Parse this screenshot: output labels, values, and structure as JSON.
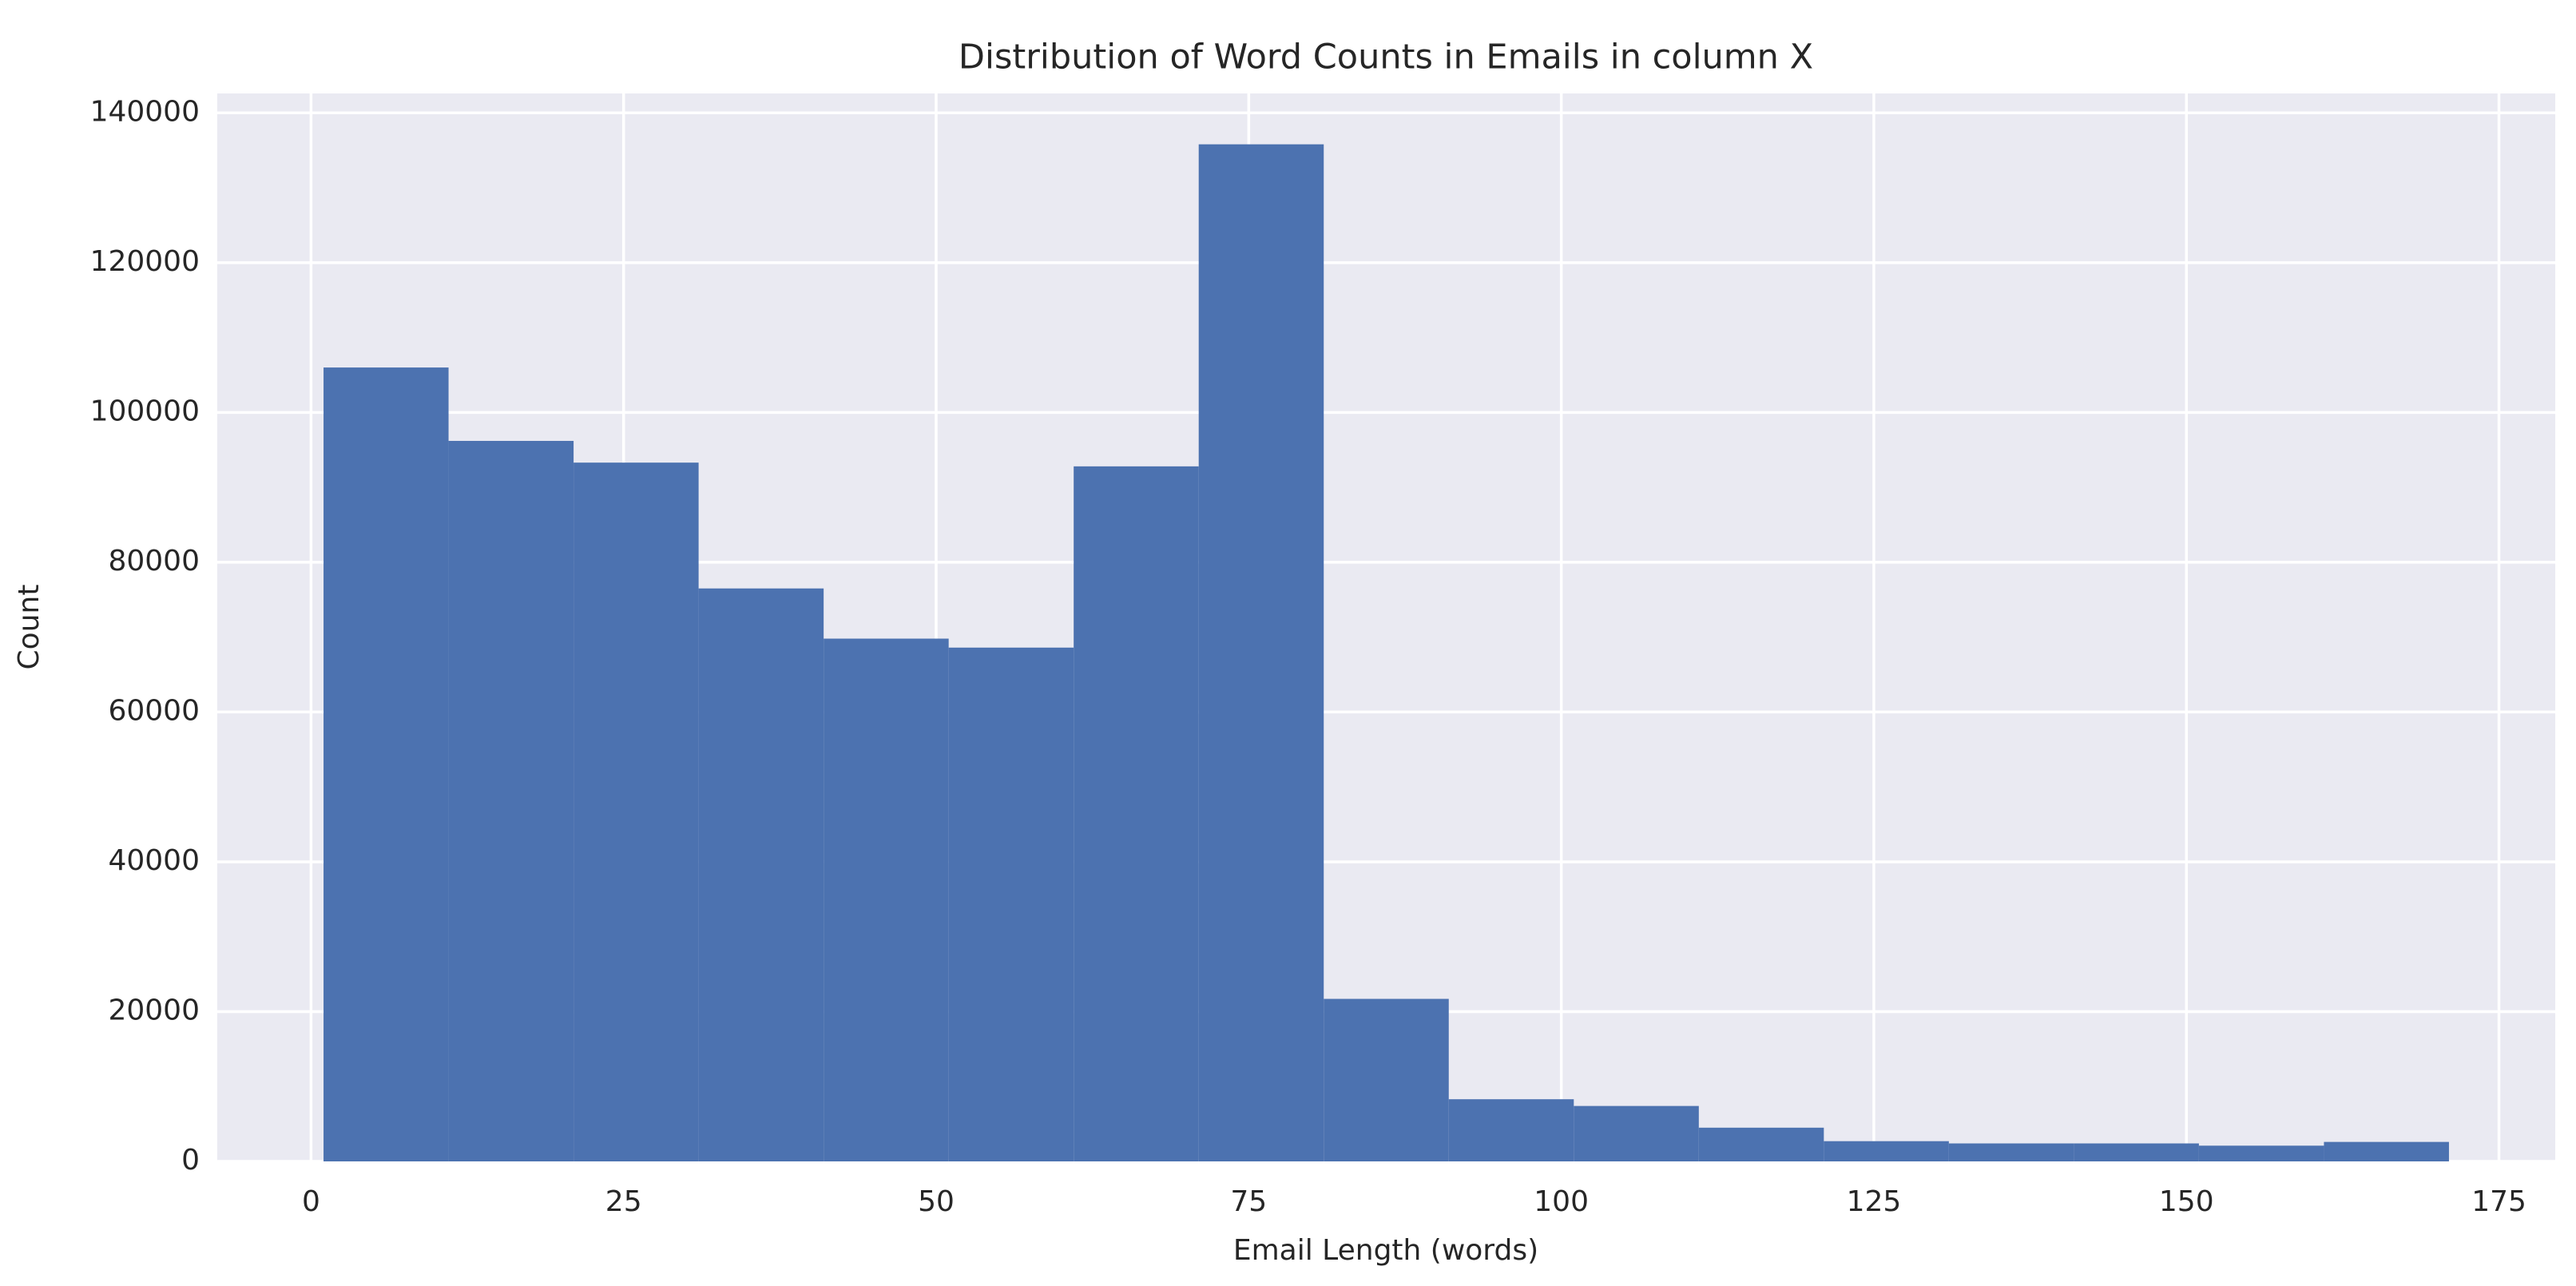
{
  "chart_data": {
    "type": "histogram",
    "title": "Distribution of Word Counts in Emails in column X",
    "xlabel": "Email Length (words)",
    "ylabel": "Count",
    "bins": [
      1,
      11,
      21,
      31,
      41,
      51,
      61,
      71,
      81,
      91,
      101,
      111,
      121,
      131,
      141,
      151,
      161,
      171
    ],
    "values": [
      106000,
      96200,
      93300,
      76500,
      69800,
      68600,
      92800,
      135800,
      21700,
      8300,
      7400,
      4500,
      2700,
      2400,
      2400,
      2100,
      2600
    ],
    "color": "#4c72b0",
    "xlim": [
      -7.5,
      179.5
    ],
    "xticks": [
      0,
      25,
      50,
      75,
      100,
      125,
      150,
      175
    ],
    "ylim": [
      0,
      142590
    ],
    "yticks": [
      0,
      20000,
      40000,
      60000,
      80000,
      100000,
      120000,
      140000
    ],
    "grid": true
  }
}
